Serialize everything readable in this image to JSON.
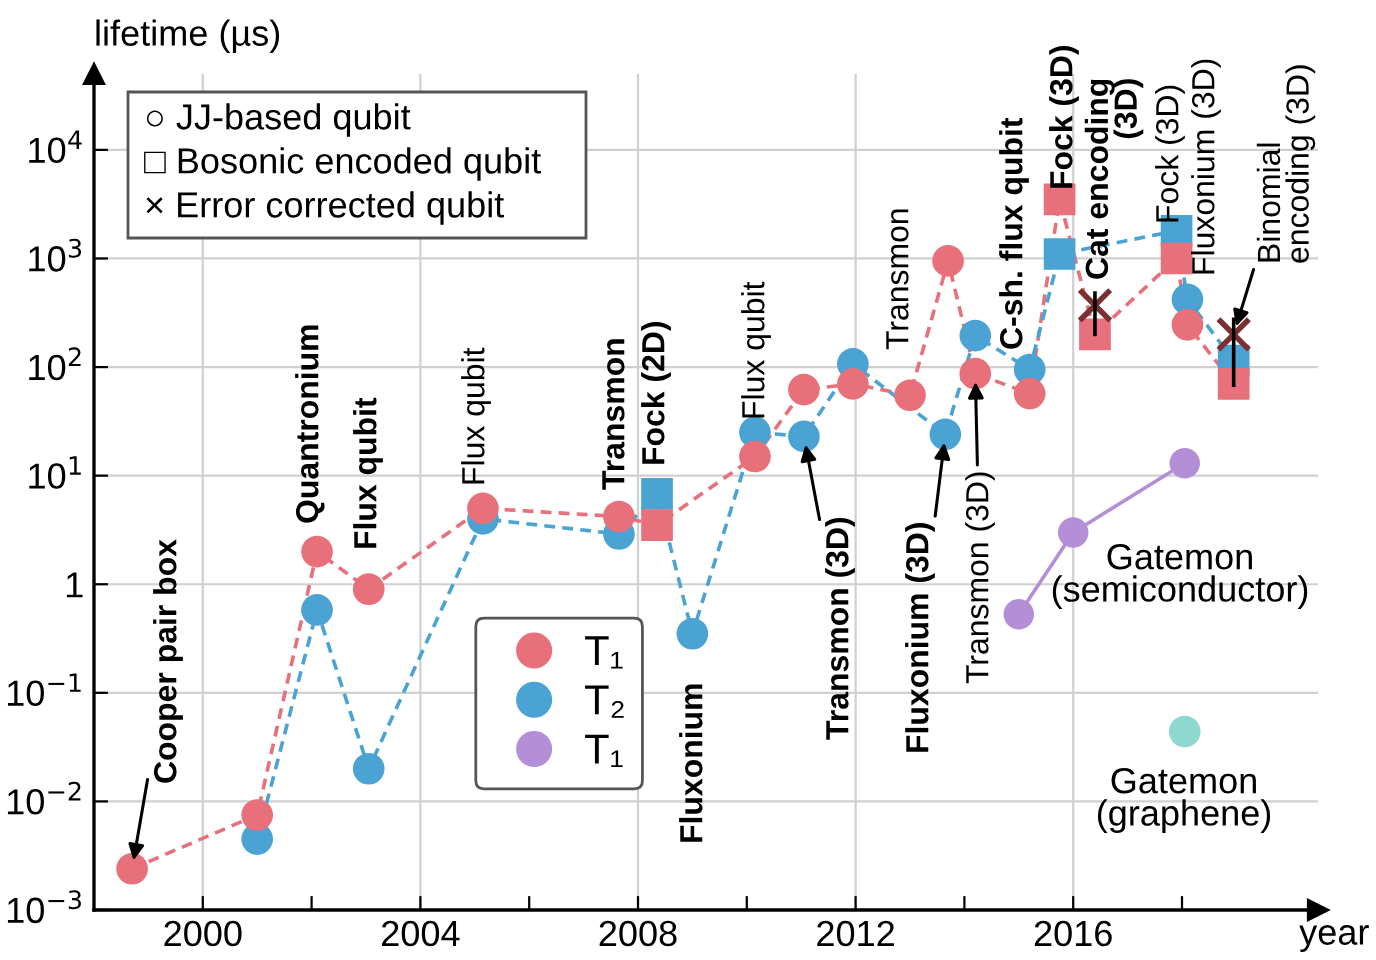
{
  "chart_data": {
    "type": "line",
    "xlabel": "year",
    "ylabel": "lifetime (µs)",
    "log": "y",
    "grid": true,
    "legend": "bottom",
    "xlim": [
      1998,
      2020.5
    ],
    "xticks": [
      2000,
      {
        "value": 2002,
        "label": null
      },
      2004,
      {
        "value": 2006,
        "label": null
      },
      2008,
      {
        "value": 2010,
        "label": null
      },
      2012,
      {
        "value": 2014,
        "label": null
      },
      2016,
      {
        "value": 2018,
        "label": null
      }
    ],
    "ylim": [
      0.001,
      50000
    ],
    "yticks": [
      {
        "value": 0.001,
        "label": "10$^{−3}$"
      },
      {
        "value": 0.01,
        "label": "10$^{−2}$"
      },
      {
        "value": 0.1,
        "label": "10$^{−1}$"
      },
      1,
      {
        "value": 10,
        "label": "10$^{1}$"
      },
      {
        "value": 100,
        "label": "10$^{2}$"
      },
      {
        "value": 1000,
        "label": "10$^{3}$"
      },
      {
        "value": 10000,
        "label": "10$^{4}$"
      }
    ],
    "series": [
      {
        "name": "T₁",
        "line_style": "dashed",
        "marker": "none",
        "color": "#e8707a",
        "x": [
          1998.7,
          2001.0,
          2002.1,
          2003.05,
          2005.15,
          2007.65,
          2008.35,
          2010.15,
          2011.05,
          2011.95,
          2013.0,
          2013.7,
          2014.2,
          2015.2,
          2015.75,
          2016.4,
          2017.9,
          2018.1,
          2018.95
        ],
        "values": [
          0.0024,
          0.0075,
          2,
          0.9,
          5,
          4.2,
          3.5,
          15,
          62,
          70,
          55,
          950,
          87,
          57,
          3500,
          200,
          1000,
          245,
          70
        ]
      },
      {
        "name": "T₂",
        "line_style": "dashed",
        "marker": "none",
        "color": "#4aa3d3",
        "x": [
          2001.0,
          2002.1,
          2003.05,
          2005.15,
          2007.65,
          2008.35,
          2009.0,
          2010.15,
          2011.05,
          2011.95,
          2013.65,
          2014.2,
          2015.2,
          2015.75,
          2017.9,
          2018.1,
          2018.95
        ],
        "values": [
          0.0045,
          0.58,
          0.02,
          4,
          2.9,
          6.8,
          0.35,
          25,
          23,
          107,
          24,
          195,
          95,
          1100,
          1800,
          420,
          115
        ]
      },
      {
        "type": "scatter",
        "marker": "circle",
        "color": "#4aa3d3",
        "x": [
          2001.0,
          2002.1,
          2003.05,
          2005.15,
          2007.65,
          2009.0,
          2010.15,
          2011.05,
          2011.95,
          2013.65,
          2014.2,
          2015.2,
          2018.1
        ],
        "values": [
          0.0045,
          0.58,
          0.02,
          4,
          2.9,
          0.35,
          25,
          23,
          107,
          24,
          195,
          95,
          420
        ]
      },
      {
        "type": "scatter",
        "marker": "circle",
        "color": "#e8707a",
        "x": [
          1998.7,
          2001.0,
          2002.1,
          2003.05,
          2005.15,
          2007.65,
          2010.15,
          2011.05,
          2011.95,
          2013.0,
          2013.7,
          2014.2,
          2015.2,
          2018.1
        ],
        "values": [
          0.0024,
          0.0075,
          2,
          0.9,
          5,
          4.2,
          15,
          62,
          70,
          55,
          950,
          87,
          57,
          245
        ]
      },
      {
        "type": "scatter",
        "marker": "square",
        "color": "#4aa3d3",
        "x": [
          2008.35,
          2015.75,
          2017.9,
          2018.95
        ],
        "values": [
          6.8,
          1100,
          1800,
          115
        ]
      },
      {
        "type": "scatter",
        "marker": "square",
        "color": "#e8707a",
        "x": [
          2008.35,
          2015.75,
          2016.4,
          2017.9,
          2018.95
        ],
        "values": [
          3.5,
          3500,
          200,
          1000,
          70
        ]
      },
      {
        "type": "scatter",
        "marker": "cross",
        "color": "#7a3030",
        "x": [
          2016.4,
          2018.95
        ],
        "values": [
          370,
          200
        ],
        "errors": [
          [
            200,
            480
          ],
          [
            68,
            275
          ]
        ]
      },
      {
        "name": "T₁",
        "line_style": "solid",
        "marker": "circle",
        "color": "#b48fd8",
        "x": [
          2015.0,
          2016.0,
          2018.05
        ],
        "values": [
          0.53,
          3,
          13
        ]
      },
      {
        "type": "scatter",
        "marker": "circle",
        "color": "#8fd8d0",
        "x": [
          2018.05
        ],
        "values": [
          0.044
        ]
      }
    ],
    "annotations": [
      {
        "text": "Cooper pair box",
        "x": 1998.7,
        "y": 0.0024
      },
      "Quantronium",
      "Flux qubit",
      "Flux qubit",
      "Transmon",
      "Fock (2D)",
      "Fluxonium",
      "Flux qubit",
      {
        "text": "Transmon (3D)",
        "x": 2011.05,
        "y": 23
      },
      {
        "text": "Fluxonium (3D)",
        "x": 2013.65,
        "y": 24
      },
      {
        "text": "Transmon (3D)",
        "x": 2014.2,
        "y": 87
      },
      "Transmon",
      "C-sh. flux qubit",
      "Fock (3D)",
      "Cat encoding\n(3D)",
      "Fock (3D)",
      "Fluxonium (3D)",
      {
        "text": "Binomial\nencoding (3D)",
        "x": 2018.95,
        "y": 200
      },
      "Gatemon\n(semiconductor)",
      "Gatemon\n(graphene)",
      "○ JJ-based qubit",
      "□ Bosonic encoded qubit",
      "× Error corrected qubit"
    ]
  }
}
